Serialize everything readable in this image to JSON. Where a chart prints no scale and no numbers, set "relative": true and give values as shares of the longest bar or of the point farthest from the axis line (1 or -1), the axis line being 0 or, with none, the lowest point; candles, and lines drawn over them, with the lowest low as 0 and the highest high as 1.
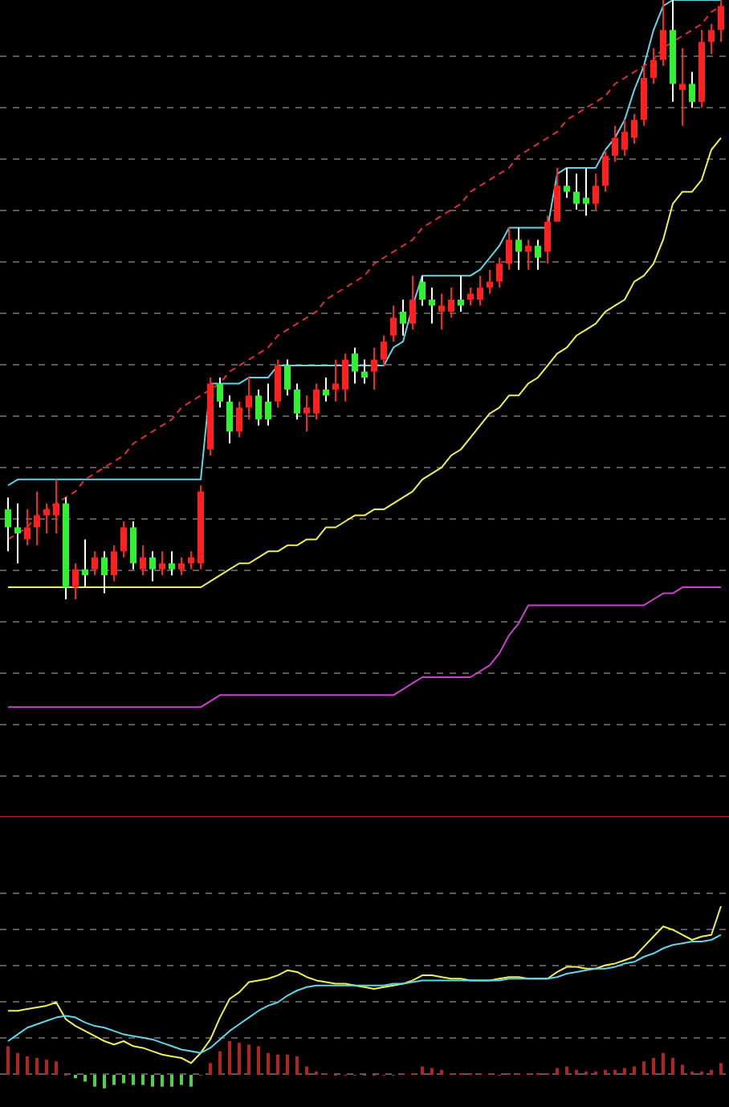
{
  "chart_data": [
    {
      "type": "candlestick",
      "relative": true,
      "grid": "y",
      "categories": [
        null,
        null,
        null,
        null,
        null,
        null,
        null,
        null,
        null,
        null,
        null,
        null,
        null,
        null,
        null,
        null,
        null,
        null,
        null,
        null,
        null,
        null,
        null,
        null,
        null,
        null,
        null,
        null,
        null,
        null,
        null,
        null,
        null,
        null,
        null,
        null,
        null,
        null,
        null,
        null,
        null,
        null,
        null,
        null,
        null,
        null,
        null,
        null,
        null,
        null,
        null,
        null,
        null,
        null,
        null,
        null,
        null,
        null,
        null,
        null,
        null,
        null,
        null,
        null,
        null,
        null,
        null,
        null,
        null,
        null,
        null,
        null,
        null,
        null,
        null
      ],
      "ohlc": [
        [
          0.15,
          0.17,
          0.08,
          0.12
        ],
        [
          0.12,
          0.16,
          0.06,
          0.11
        ],
        [
          0.1,
          0.15,
          0.09,
          0.12
        ],
        [
          0.12,
          0.18,
          0.09,
          0.14
        ],
        [
          0.14,
          0.16,
          0.11,
          0.15
        ],
        [
          0.14,
          0.2,
          0.11,
          0.16
        ],
        [
          0.16,
          0.17,
          0,
          0.02
        ],
        [
          0.02,
          0.06,
          0,
          0.05
        ],
        [
          0.05,
          0.1,
          0.02,
          0.04
        ],
        [
          0.05,
          0.08,
          0.04,
          0.07
        ],
        [
          0.07,
          0.08,
          0.01,
          0.04
        ],
        [
          0.04,
          0.09,
          0.03,
          0.08
        ],
        [
          0.08,
          0.13,
          0.07,
          0.12
        ],
        [
          0.12,
          0.13,
          0.05,
          0.06
        ],
        [
          0.05,
          0.09,
          0.04,
          0.07
        ],
        [
          0.07,
          0.08,
          0.03,
          0.05
        ],
        [
          0.05,
          0.08,
          0.04,
          0.06
        ],
        [
          0.06,
          0.08,
          0.04,
          0.05
        ],
        [
          0.05,
          0.07,
          0.04,
          0.06
        ],
        [
          0.06,
          0.08,
          0.05,
          0.07
        ],
        [
          0.06,
          0.19,
          0.05,
          0.18
        ],
        [
          0.25,
          0.37,
          0.24,
          0.36
        ],
        [
          0.36,
          0.37,
          0.32,
          0.33
        ],
        [
          0.33,
          0.34,
          0.26,
          0.28
        ],
        [
          0.28,
          0.33,
          0.27,
          0.32
        ],
        [
          0.32,
          0.37,
          0.3,
          0.34
        ],
        [
          0.34,
          0.35,
          0.29,
          0.3
        ],
        [
          0.33,
          0.36,
          0.29,
          0.3
        ],
        [
          0.33,
          0.4,
          0.32,
          0.39
        ],
        [
          0.39,
          0.4,
          0.34,
          0.35
        ],
        [
          0.35,
          0.36,
          0.3,
          0.31
        ],
        [
          0.31,
          0.34,
          0.28,
          0.32
        ],
        [
          0.31,
          0.36,
          0.3,
          0.35
        ],
        [
          0.35,
          0.37,
          0.33,
          0.34
        ],
        [
          0.35,
          0.4,
          0.33,
          0.36
        ],
        [
          0.35,
          0.41,
          0.33,
          0.4
        ],
        [
          0.41,
          0.42,
          0.36,
          0.38
        ],
        [
          0.38,
          0.4,
          0.36,
          0.37
        ],
        [
          0.38,
          0.42,
          0.35,
          0.4
        ],
        [
          0.4,
          0.44,
          0.39,
          0.43
        ],
        [
          0.44,
          0.49,
          0.43,
          0.47
        ],
        [
          0.48,
          0.5,
          0.44,
          0.46
        ],
        [
          0.46,
          0.54,
          0.45,
          0.5
        ],
        [
          0.53,
          0.54,
          0.49,
          0.5
        ],
        [
          0.5,
          0.52,
          0.46,
          0.49
        ],
        [
          0.48,
          0.51,
          0.45,
          0.49
        ],
        [
          0.48,
          0.52,
          0.47,
          0.5
        ],
        [
          0.5,
          0.54,
          0.48,
          0.49
        ],
        [
          0.5,
          0.52,
          0.49,
          0.51
        ],
        [
          0.5,
          0.54,
          0.49,
          0.52
        ],
        [
          0.52,
          0.55,
          0.51,
          0.53
        ],
        [
          0.53,
          0.57,
          0.52,
          0.56
        ],
        [
          0.56,
          0.62,
          0.55,
          0.6
        ],
        [
          0.6,
          0.62,
          0.55,
          0.58
        ],
        [
          0.58,
          0.6,
          0.55,
          0.59
        ],
        [
          0.59,
          0.6,
          0.55,
          0.57
        ],
        [
          0.58,
          0.64,
          0.56,
          0.63
        ],
        [
          0.63,
          0.72,
          0.63,
          0.69
        ],
        [
          0.69,
          0.72,
          0.67,
          0.68
        ],
        [
          0.68,
          0.71,
          0.65,
          0.66
        ],
        [
          0.67,
          0.72,
          0.64,
          0.66
        ],
        [
          0.66,
          0.71,
          0.65,
          0.69
        ],
        [
          0.69,
          0.75,
          0.68,
          0.74
        ],
        [
          0.74,
          0.79,
          0.73,
          0.77
        ],
        [
          0.75,
          0.8,
          0.74,
          0.78
        ],
        [
          0.77,
          0.81,
          0.76,
          0.8
        ],
        [
          0.8,
          0.89,
          0.79,
          0.87
        ],
        [
          0.87,
          0.92,
          0.86,
          0.9
        ],
        [
          0.9,
          1,
          0.89,
          0.95
        ],
        [
          0.95,
          1,
          0.83,
          0.86
        ],
        [
          0.85,
          0.92,
          0.79,
          0.86
        ],
        [
          0.86,
          0.88,
          0.82,
          0.83
        ],
        [
          0.83,
          0.95,
          0.82,
          0.93
        ],
        [
          0.93,
          0.96,
          0.91,
          0.95
        ],
        [
          0.95,
          1,
          0.93,
          0.99
        ]
      ],
      "series": [
        {
          "type": "line",
          "color": "#5fd7e8",
          "values": [
            0.19,
            0.2,
            0.2,
            0.2,
            0.2,
            0.2,
            0.2,
            0.2,
            0.2,
            0.2,
            0.2,
            0.2,
            0.2,
            0.2,
            0.2,
            0.2,
            0.2,
            0.2,
            0.2,
            0.2,
            0.2,
            0.36,
            0.36,
            0.36,
            0.36,
            0.37,
            0.37,
            0.37,
            0.39,
            0.39,
            0.39,
            0.39,
            0.39,
            0.39,
            0.39,
            0.39,
            0.39,
            0.39,
            0.39,
            0.39,
            0.42,
            0.43,
            0.49,
            0.54,
            0.54,
            0.54,
            0.54,
            0.54,
            0.54,
            0.55,
            0.57,
            0.59,
            0.62,
            0.62,
            0.62,
            0.62,
            0.62,
            0.71,
            0.72,
            0.72,
            0.72,
            0.72,
            0.75,
            0.77,
            0.8,
            0.85,
            0.89,
            0.95,
            0.99,
            1,
            1,
            1,
            1,
            1,
            1
          ]
        },
        {
          "type": "line",
          "color": "#f0f050",
          "values": [
            0.02,
            0.02,
            0.02,
            0.02,
            0.02,
            0.02,
            0.02,
            0.02,
            0.02,
            0.02,
            0.02,
            0.02,
            0.02,
            0.02,
            0.02,
            0.02,
            0.02,
            0.02,
            0.02,
            0.02,
            0.02,
            0.03,
            0.04,
            0.05,
            0.06,
            0.06,
            0.07,
            0.08,
            0.08,
            0.09,
            0.09,
            0.1,
            0.1,
            0.12,
            0.12,
            0.13,
            0.14,
            0.14,
            0.15,
            0.15,
            0.16,
            0.17,
            0.18,
            0.2,
            0.21,
            0.22,
            0.24,
            0.25,
            0.27,
            0.29,
            0.31,
            0.32,
            0.34,
            0.34,
            0.36,
            0.37,
            0.39,
            0.41,
            0.42,
            0.44,
            0.45,
            0.46,
            0.48,
            0.49,
            0.5,
            0.53,
            0.54,
            0.56,
            0.6,
            0.66,
            0.68,
            0.68,
            0.7,
            0.75,
            0.77
          ]
        },
        {
          "type": "line",
          "color": "#d040d0",
          "values": [
            -0.18,
            -0.18,
            -0.18,
            -0.18,
            -0.18,
            -0.18,
            -0.18,
            -0.18,
            -0.18,
            -0.18,
            -0.18,
            -0.18,
            -0.18,
            -0.18,
            -0.18,
            -0.18,
            -0.18,
            -0.18,
            -0.18,
            -0.18,
            -0.18,
            -0.17,
            -0.16,
            -0.16,
            -0.16,
            -0.16,
            -0.16,
            -0.16,
            -0.16,
            -0.16,
            -0.16,
            -0.16,
            -0.16,
            -0.16,
            -0.16,
            -0.16,
            -0.16,
            -0.16,
            -0.16,
            -0.16,
            -0.16,
            -0.15,
            -0.14,
            -0.13,
            -0.13,
            -0.13,
            -0.13,
            -0.13,
            -0.13,
            -0.12,
            -0.11,
            -0.09,
            -0.06,
            -0.04,
            -0.01,
            -0.01,
            -0.01,
            -0.01,
            -0.01,
            -0.01,
            -0.01,
            -0.01,
            -0.01,
            -0.01,
            -0.01,
            -0.01,
            -0.01,
            0,
            0.01,
            0.01,
            0.02,
            0.02,
            0.02,
            0.02,
            0.02
          ]
        },
        {
          "type": "line",
          "color": "#e03030",
          "line_style": "dashed",
          "values": [
            0.1,
            0.11,
            0.12,
            0.14,
            0.15,
            0.16,
            0.17,
            0.18,
            0.2,
            0.21,
            0.22,
            0.23,
            0.24,
            0.26,
            0.27,
            0.28,
            0.29,
            0.3,
            0.32,
            0.33,
            0.34,
            0.35,
            0.36,
            0.38,
            0.39,
            0.4,
            0.41,
            0.42,
            0.44,
            0.45,
            0.46,
            0.47,
            0.48,
            0.5,
            0.51,
            0.52,
            0.53,
            0.54,
            0.56,
            0.57,
            0.58,
            0.59,
            0.6,
            0.62,
            0.63,
            0.64,
            0.65,
            0.66,
            0.68,
            0.69,
            0.7,
            0.71,
            0.72,
            0.74,
            0.75,
            0.76,
            0.77,
            0.78,
            0.8,
            0.81,
            0.82,
            0.83,
            0.84,
            0.86,
            0.87,
            0.88,
            0.89,
            0.9,
            0.92,
            0.93,
            0.94,
            0.95,
            0.96,
            0.98,
            0.99
          ]
        }
      ]
    },
    {
      "type": "bar",
      "relative": true,
      "grid": "y",
      "categories": [
        null,
        null,
        null,
        null,
        null,
        null,
        null,
        null,
        null,
        null,
        null,
        null,
        null,
        null,
        null,
        null,
        null,
        null,
        null,
        null,
        null,
        null,
        null,
        null,
        null,
        null,
        null,
        null,
        null,
        null,
        null,
        null,
        null,
        null,
        null,
        null,
        null,
        null,
        null,
        null,
        null,
        null,
        null,
        null,
        null,
        null,
        null,
        null,
        null,
        null,
        null,
        null,
        null,
        null,
        null,
        null,
        null,
        null,
        null,
        null,
        null,
        null,
        null,
        null,
        null,
        null,
        null,
        null,
        null,
        null,
        null,
        null,
        null,
        null,
        null
      ],
      "series": [
        {
          "type": "bar",
          "values": [
            0.17,
            0.13,
            0.11,
            0.1,
            0.09,
            0.08,
            0,
            -0.02,
            -0.04,
            -0.07,
            -0.08,
            -0.06,
            -0.05,
            -0.06,
            -0.06,
            -0.07,
            -0.07,
            -0.07,
            -0.06,
            -0.07,
            0,
            0.07,
            0.14,
            0.2,
            0.19,
            0.18,
            0.17,
            0.13,
            0.12,
            0.12,
            0.11,
            0.05,
            0.02,
            0.01,
            0,
            0,
            0,
            0,
            0,
            0,
            0,
            0.01,
            0.01,
            0.05,
            0.04,
            0.03,
            0.01,
            0.01,
            0.01,
            0.01,
            0.01,
            0,
            0.01,
            0.01,
            0.01,
            0.01,
            0.01,
            0.04,
            0.05,
            0.03,
            0.02,
            0.02,
            0.03,
            0.03,
            0.04,
            0.05,
            0.08,
            0.1,
            0.13,
            0.1,
            0.06,
            0.02,
            0.02,
            0.03,
            0.07
          ],
          "colors": [
            "#b02424",
            "#b02424",
            "#b02424",
            "#b02424",
            "#b02424",
            "#b02424",
            "#b02424",
            "#50d050",
            "#50d050",
            "#50d050",
            "#50d050",
            "#50d050",
            "#50d050",
            "#50d050",
            "#50d050",
            "#50d050",
            "#50d050",
            "#50d050",
            "#50d050",
            "#50d050",
            "#b02424",
            "#b02424",
            "#b02424",
            "#b02424",
            "#b02424",
            "#b02424",
            "#b02424",
            "#b02424",
            "#b02424",
            "#b02424",
            "#b02424",
            "#b02424",
            "#b02424",
            "#b02424",
            "#b02424",
            "#b02424",
            "#b02424",
            "#b02424",
            "#b02424",
            "#b02424",
            "#b02424",
            "#b02424",
            "#b02424",
            "#b02424",
            "#b02424",
            "#b02424",
            "#b02424",
            "#b02424",
            "#b02424",
            "#b02424",
            "#b02424",
            "#b02424",
            "#b02424",
            "#b02424",
            "#b02424",
            "#b02424",
            "#b02424",
            "#b02424",
            "#b02424",
            "#b02424",
            "#b02424",
            "#b02424",
            "#b02424",
            "#b02424",
            "#b02424",
            "#b02424",
            "#b02424",
            "#b02424",
            "#b02424",
            "#b02424",
            "#b02424",
            "#b02424",
            "#b02424",
            "#b02424",
            "#b02424"
          ]
        },
        {
          "type": "line",
          "color": "#f0f050",
          "values": [
            0.38,
            0.38,
            0.39,
            0.4,
            0.41,
            0.43,
            0.33,
            0.29,
            0.26,
            0.23,
            0.2,
            0.18,
            0.2,
            0.17,
            0.16,
            0.14,
            0.12,
            0.11,
            0.1,
            0.07,
            0.13,
            0.21,
            0.34,
            0.45,
            0.49,
            0.55,
            0.56,
            0.57,
            0.59,
            0.62,
            0.61,
            0.58,
            0.56,
            0.55,
            0.54,
            0.54,
            0.53,
            0.52,
            0.51,
            0.52,
            0.53,
            0.54,
            0.56,
            0.59,
            0.59,
            0.58,
            0.57,
            0.57,
            0.56,
            0.56,
            0.56,
            0.57,
            0.58,
            0.58,
            0.57,
            0.57,
            0.57,
            0.61,
            0.64,
            0.64,
            0.63,
            0.63,
            0.65,
            0.66,
            0.68,
            0.7,
            0.76,
            0.82,
            0.88,
            0.86,
            0.83,
            0.8,
            0.82,
            0.83,
            1
          ]
        },
        {
          "type": "line",
          "color": "#5fd7e8",
          "values": [
            0.2,
            0.24,
            0.28,
            0.3,
            0.32,
            0.34,
            0.35,
            0.34,
            0.31,
            0.29,
            0.28,
            0.26,
            0.24,
            0.23,
            0.22,
            0.21,
            0.19,
            0.17,
            0.15,
            0.14,
            0.13,
            0.16,
            0.21,
            0.26,
            0.3,
            0.34,
            0.38,
            0.41,
            0.43,
            0.47,
            0.5,
            0.52,
            0.53,
            0.53,
            0.53,
            0.53,
            0.53,
            0.53,
            0.53,
            0.53,
            0.54,
            0.54,
            0.55,
            0.56,
            0.56,
            0.56,
            0.56,
            0.56,
            0.56,
            0.56,
            0.56,
            0.56,
            0.57,
            0.57,
            0.57,
            0.57,
            0.57,
            0.58,
            0.6,
            0.61,
            0.62,
            0.63,
            0.63,
            0.64,
            0.66,
            0.67,
            0.7,
            0.72,
            0.75,
            0.77,
            0.78,
            0.79,
            0.79,
            0.8,
            0.83
          ]
        }
      ]
    }
  ]
}
